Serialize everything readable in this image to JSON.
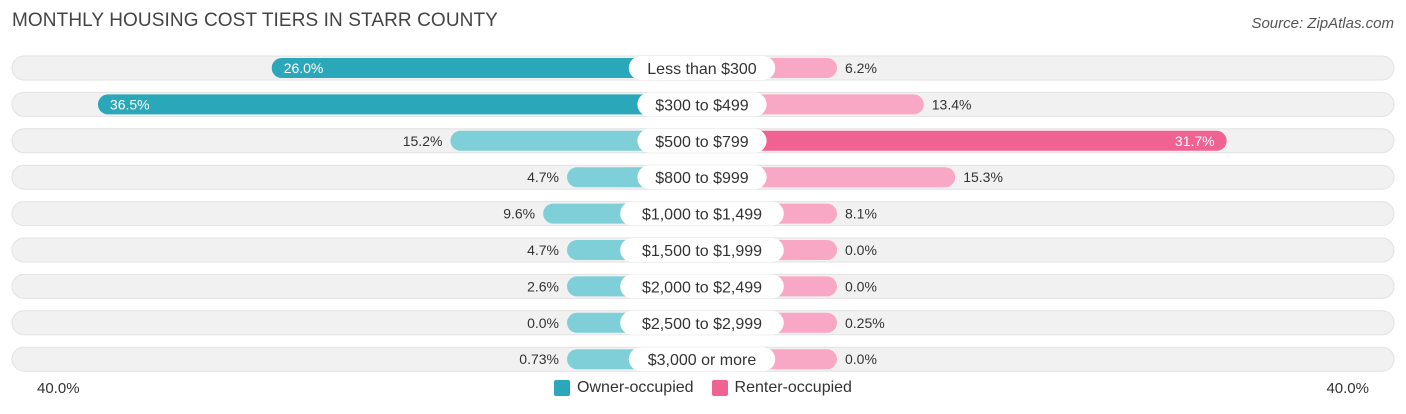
{
  "header": {
    "title": "MONTHLY HOUSING COST TIERS IN STARR COUNTY",
    "source": "Source: ZipAtlas.com"
  },
  "colors": {
    "owner_strong": "#2aa7b8",
    "owner_light": "#7fcfd9",
    "renter_strong": "#f06292",
    "renter_light": "#f8a8c4",
    "track": "#f1f1f1"
  },
  "chart_data": {
    "type": "bar",
    "orientation": "diverging-horizontal",
    "categories": [
      "Less than $300",
      "$300 to $499",
      "$500 to $799",
      "$800 to $999",
      "$1,000 to $1,499",
      "$1,500 to $1,999",
      "$2,000 to $2,499",
      "$2,500 to $2,999",
      "$3,000 or more"
    ],
    "series": [
      {
        "name": "Owner-occupied",
        "values": [
          26.0,
          36.5,
          15.2,
          4.7,
          9.6,
          4.7,
          2.6,
          0.0,
          0.73
        ],
        "labels": [
          "26.0%",
          "36.5%",
          "15.2%",
          "4.7%",
          "9.6%",
          "4.7%",
          "2.6%",
          "0.0%",
          "0.73%"
        ]
      },
      {
        "name": "Renter-occupied",
        "values": [
          6.2,
          13.4,
          31.7,
          15.3,
          8.1,
          0.0,
          0.0,
          0.25,
          0.0
        ],
        "labels": [
          "6.2%",
          "13.4%",
          "31.7%",
          "15.3%",
          "8.1%",
          "0.0%",
          "0.0%",
          "0.25%",
          "0.0%"
        ]
      }
    ],
    "xlim": [
      -40,
      40
    ],
    "axis_min_label": "40.0%",
    "axis_max_label": "40.0%",
    "legend_position": "bottom-center"
  }
}
